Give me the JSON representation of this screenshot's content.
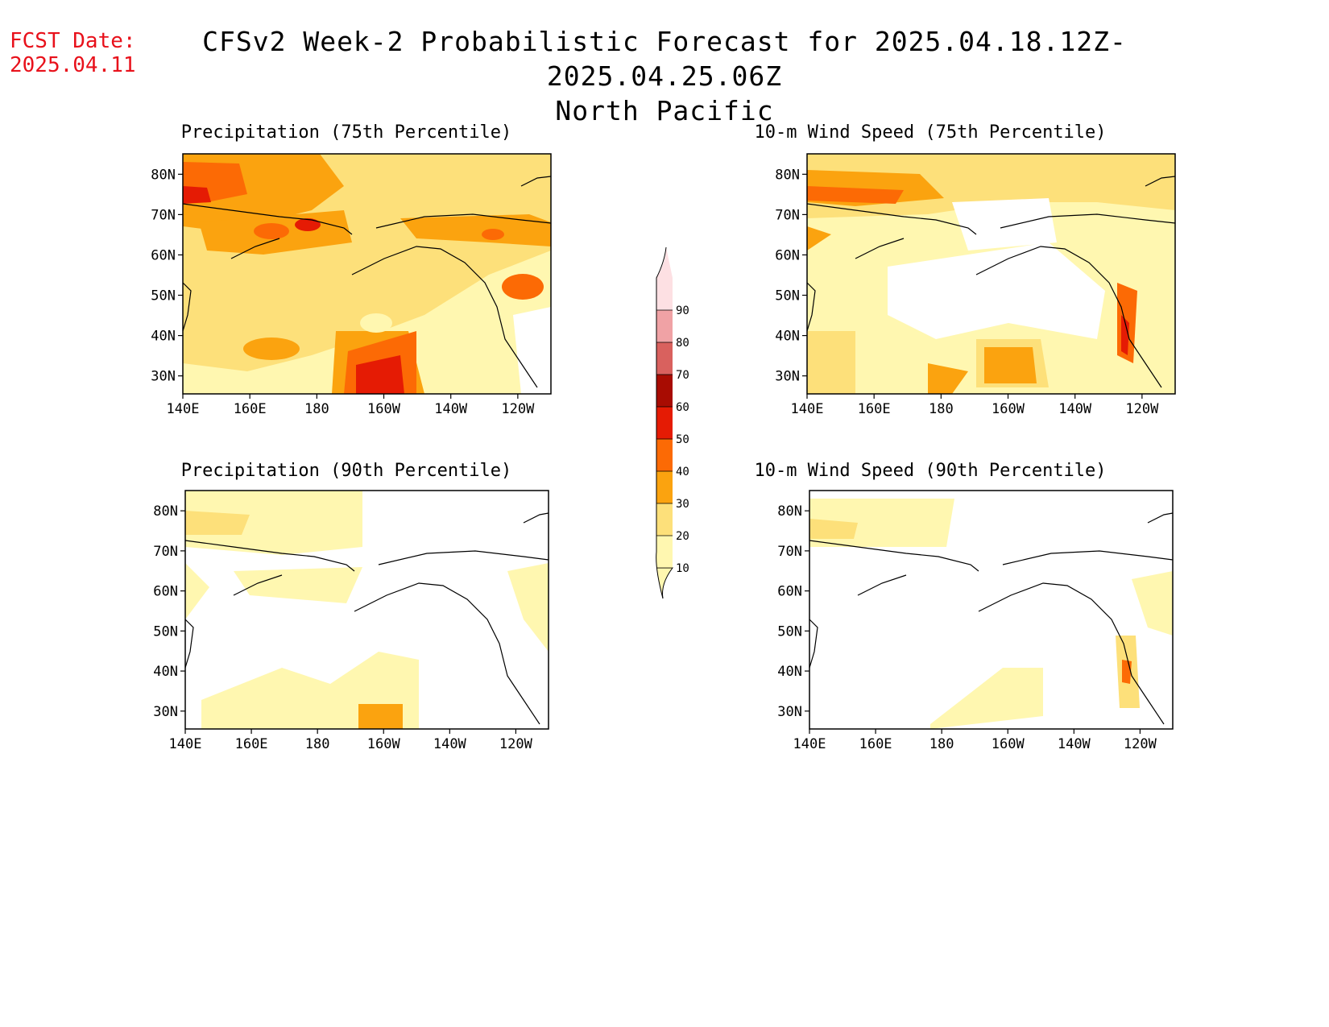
{
  "header": {
    "fcst_label": "FCST Date:",
    "fcst_date": "2025.04.11",
    "title_line1": "CFSv2 Week-2 Probabilistic Forecast for 2025.04.18.12Z-2025.04.25.06Z",
    "title_line2": "North Pacific"
  },
  "axes": {
    "lat_labels": [
      "80N",
      "70N",
      "60N",
      "50N",
      "40N",
      "30N"
    ],
    "lon_labels": [
      "140E",
      "160E",
      "180",
      "160W",
      "140W",
      "120W"
    ]
  },
  "panels": [
    {
      "id": "precip75",
      "title": "Precipitation (75th Percentile)"
    },
    {
      "id": "wind75",
      "title": "10-m Wind Speed (75th Percentile)"
    },
    {
      "id": "precip90",
      "title": "Precipitation (90th Percentile)"
    },
    {
      "id": "wind90",
      "title": "10-m Wind Speed (90th Percentile)"
    }
  ],
  "colorbar": {
    "labels": [
      "10",
      "20",
      "30",
      "40",
      "50",
      "60",
      "70",
      "80",
      "90"
    ],
    "colors": [
      "#fff7b0",
      "#fde07a",
      "#fba30f",
      "#fc6a05",
      "#e51b04",
      "#a80c02",
      "#d9615e",
      "#f0a2a5",
      "#fde0e3"
    ]
  }
}
